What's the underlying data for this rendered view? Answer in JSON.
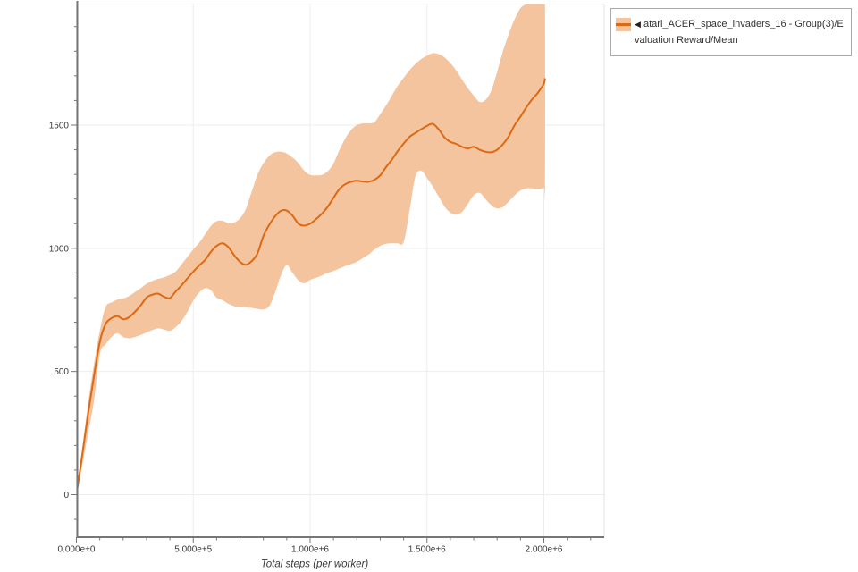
{
  "window": {
    "background": "#ffffff"
  },
  "legend": {
    "arrow": "◀",
    "label": "atari_ACER_space_invaders_16 - Group(3)/Evaluation Reward/Mean",
    "swatch_band_color": "#f3c49e",
    "swatch_line_color": "#dd6914"
  },
  "chart_data": {
    "type": "line",
    "title": "",
    "xlabel": "Total steps (per worker)",
    "ylabel": "",
    "grid": true,
    "legend_position": "top-right-outside",
    "xlim": [
      0,
      2260000
    ],
    "ylim": [
      -172,
      1991
    ],
    "x_tick_steps": [
      0,
      500000,
      1000000,
      1500000,
      2000000
    ],
    "x_tick_labels": [
      "0.000e+0",
      "5.000e+5",
      "1.000e+6",
      "1.500e+6",
      "2.000e+6"
    ],
    "x_minor_tick_interval": 100000,
    "x_minor_tick_max": 2200000,
    "y_ticks": [
      0,
      500,
      1000,
      1500
    ],
    "y_tick_labels": [
      "0",
      "500",
      "1000",
      "1500"
    ],
    "y_minor_tick_interval": 100,
    "y_minor_tick_min": -100,
    "y_minor_tick_max": 1900,
    "colors": {
      "line": "#dd6914",
      "band": "#f3c49e",
      "grid": "#ededed",
      "border": "#e3e3e3",
      "spine": "#767676",
      "tick_text": "#383838"
    },
    "series": [
      {
        "name": "atari_ACER_space_invaders_16 - Group(3)/Evaluation Reward/Mean",
        "color": "#dd6914",
        "band_color": "#f3c49e",
        "steps": [
          0,
          25000,
          50000,
          75000,
          100000,
          125000,
          150000,
          175000,
          200000,
          225000,
          250000,
          275000,
          300000,
          325000,
          350000,
          375000,
          400000,
          425000,
          450000,
          475000,
          500000,
          525000,
          550000,
          575000,
          600000,
          625000,
          650000,
          675000,
          700000,
          725000,
          750000,
          775000,
          800000,
          825000,
          850000,
          875000,
          900000,
          925000,
          950000,
          975000,
          1000000,
          1025000,
          1050000,
          1075000,
          1100000,
          1125000,
          1150000,
          1175000,
          1200000,
          1225000,
          1250000,
          1275000,
          1300000,
          1325000,
          1350000,
          1375000,
          1400000,
          1425000,
          1450000,
          1475000,
          1500000,
          1525000,
          1550000,
          1575000,
          1600000,
          1625000,
          1650000,
          1675000,
          1700000,
          1725000,
          1750000,
          1775000,
          1800000,
          1825000,
          1850000,
          1875000,
          1900000,
          1925000,
          1950000,
          1975000,
          2000000,
          2005000
        ],
        "mean": [
          0,
          160,
          330,
          480,
          620,
          693,
          716,
          725,
          712,
          720,
          742,
          768,
          800,
          812,
          816,
          803,
          798,
          825,
          850,
          878,
          905,
          930,
          952,
          985,
          1010,
          1020,
          1005,
          972,
          945,
          933,
          948,
          980,
          1050,
          1095,
          1130,
          1152,
          1153,
          1132,
          1100,
          1092,
          1100,
          1118,
          1140,
          1168,
          1205,
          1240,
          1260,
          1270,
          1274,
          1271,
          1270,
          1278,
          1296,
          1330,
          1360,
          1395,
          1425,
          1452,
          1468,
          1483,
          1497,
          1505,
          1483,
          1450,
          1432,
          1424,
          1412,
          1405,
          1412,
          1400,
          1392,
          1390,
          1400,
          1422,
          1455,
          1500,
          1535,
          1572,
          1605,
          1632,
          1668,
          1690
        ],
        "band_hi": [
          0,
          185,
          370,
          530,
          665,
          762,
          780,
          792,
          796,
          806,
          822,
          838,
          856,
          868,
          876,
          882,
          892,
          906,
          935,
          965,
          996,
          1022,
          1056,
          1090,
          1110,
          1112,
          1102,
          1105,
          1122,
          1160,
          1230,
          1300,
          1345,
          1375,
          1390,
          1392,
          1385,
          1368,
          1345,
          1315,
          1298,
          1296,
          1298,
          1312,
          1345,
          1398,
          1445,
          1480,
          1500,
          1507,
          1507,
          1512,
          1545,
          1580,
          1620,
          1660,
          1692,
          1722,
          1748,
          1768,
          1782,
          1792,
          1788,
          1775,
          1752,
          1722,
          1685,
          1650,
          1620,
          1594,
          1602,
          1640,
          1715,
          1800,
          1870,
          1930,
          1975,
          1990,
          1992,
          1992,
          1992,
          1992
        ],
        "band_lo": [
          0,
          120,
          250,
          380,
          570,
          610,
          640,
          655,
          640,
          635,
          640,
          648,
          658,
          668,
          675,
          670,
          665,
          680,
          705,
          742,
          788,
          820,
          838,
          830,
          800,
          790,
          775,
          765,
          762,
          760,
          758,
          754,
          752,
          765,
          820,
          890,
          932,
          900,
          870,
          858,
          872,
          880,
          890,
          900,
          908,
          918,
          928,
          936,
          945,
          960,
          975,
          995,
          1010,
          1018,
          1020,
          1020,
          1025,
          1150,
          1290,
          1315,
          1285,
          1250,
          1210,
          1170,
          1145,
          1136,
          1148,
          1180,
          1215,
          1225,
          1200,
          1175,
          1162,
          1168,
          1190,
          1215,
          1235,
          1243,
          1243,
          1240,
          1245,
          1252
        ]
      }
    ]
  }
}
